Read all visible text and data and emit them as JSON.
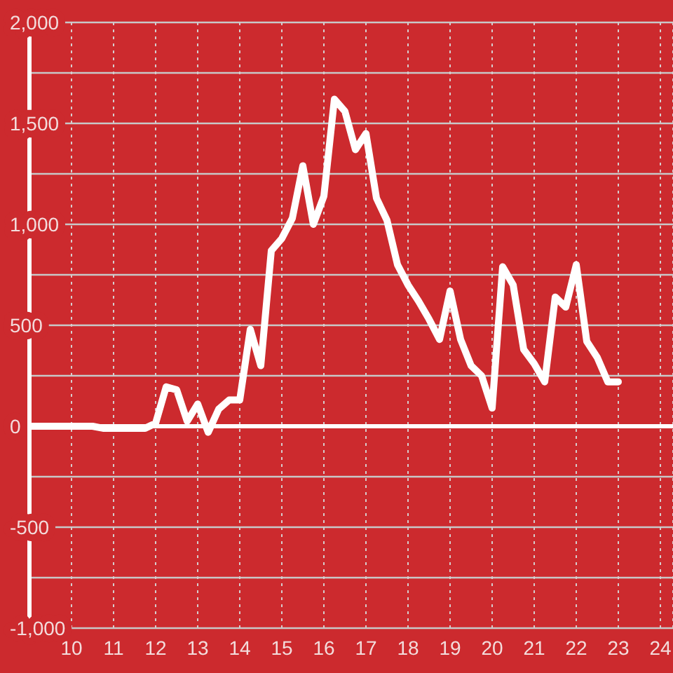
{
  "chart_data": {
    "type": "line",
    "x": [
      9,
      9.25,
      9.5,
      9.75,
      10,
      10.25,
      10.5,
      10.75,
      11,
      11.25,
      11.5,
      11.75,
      12,
      12.25,
      12.5,
      12.75,
      13,
      13.25,
      13.5,
      13.75,
      14,
      14.25,
      14.5,
      14.75,
      15,
      15.25,
      15.5,
      15.75,
      16,
      16.25,
      16.5,
      16.75,
      17,
      17.25,
      17.5,
      17.75,
      18,
      18.25,
      18.5,
      18.75,
      19,
      19.25,
      19.5,
      19.75,
      20,
      20.25,
      20.5,
      20.75,
      21,
      21.25,
      21.5,
      21.75,
      22,
      22.25,
      22.5,
      22.75,
      23
    ],
    "series": [
      {
        "color": "#ffffff",
        "values": [
          0,
          0,
          0,
          0,
          0,
          0,
          0,
          -10,
          -10,
          -10,
          -10,
          -10,
          15,
          195,
          180,
          25,
          110,
          -30,
          85,
          130,
          130,
          480,
          300,
          870,
          930,
          1030,
          1290,
          1000,
          1140,
          1620,
          1560,
          1370,
          1450,
          1130,
          1020,
          800,
          700,
          620,
          530,
          430,
          670,
          430,
          300,
          250,
          90,
          790,
          700,
          380,
          310,
          220,
          640,
          590,
          800,
          420,
          340,
          220,
          220
        ]
      }
    ],
    "xlim": [
      9,
      24.3
    ],
    "xticks": [
      10,
      11,
      12,
      13,
      14,
      15,
      16,
      17,
      18,
      19,
      20,
      21,
      22,
      23,
      24
    ],
    "ylim": [
      -1000,
      2000
    ],
    "yticks": [
      {
        "value": -1000,
        "label": "-1,000"
      },
      {
        "value": -750,
        "label": null
      },
      -500,
      {
        "value": -250,
        "label": null
      },
      0,
      {
        "value": 250,
        "label": null
      },
      500,
      {
        "value": 750,
        "label": null
      },
      {
        "value": 1000,
        "label": "1,000"
      },
      {
        "value": 1250,
        "label": null
      },
      {
        "value": 1500,
        "label": "1,500"
      },
      {
        "value": 1750,
        "label": null
      },
      {
        "value": 2000,
        "label": "2,000"
      }
    ],
    "grid": true,
    "line_style": "solid",
    "ref_lines": [
      {
        "axis": "y",
        "value": 0,
        "color": "#ffffff"
      }
    ]
  }
}
